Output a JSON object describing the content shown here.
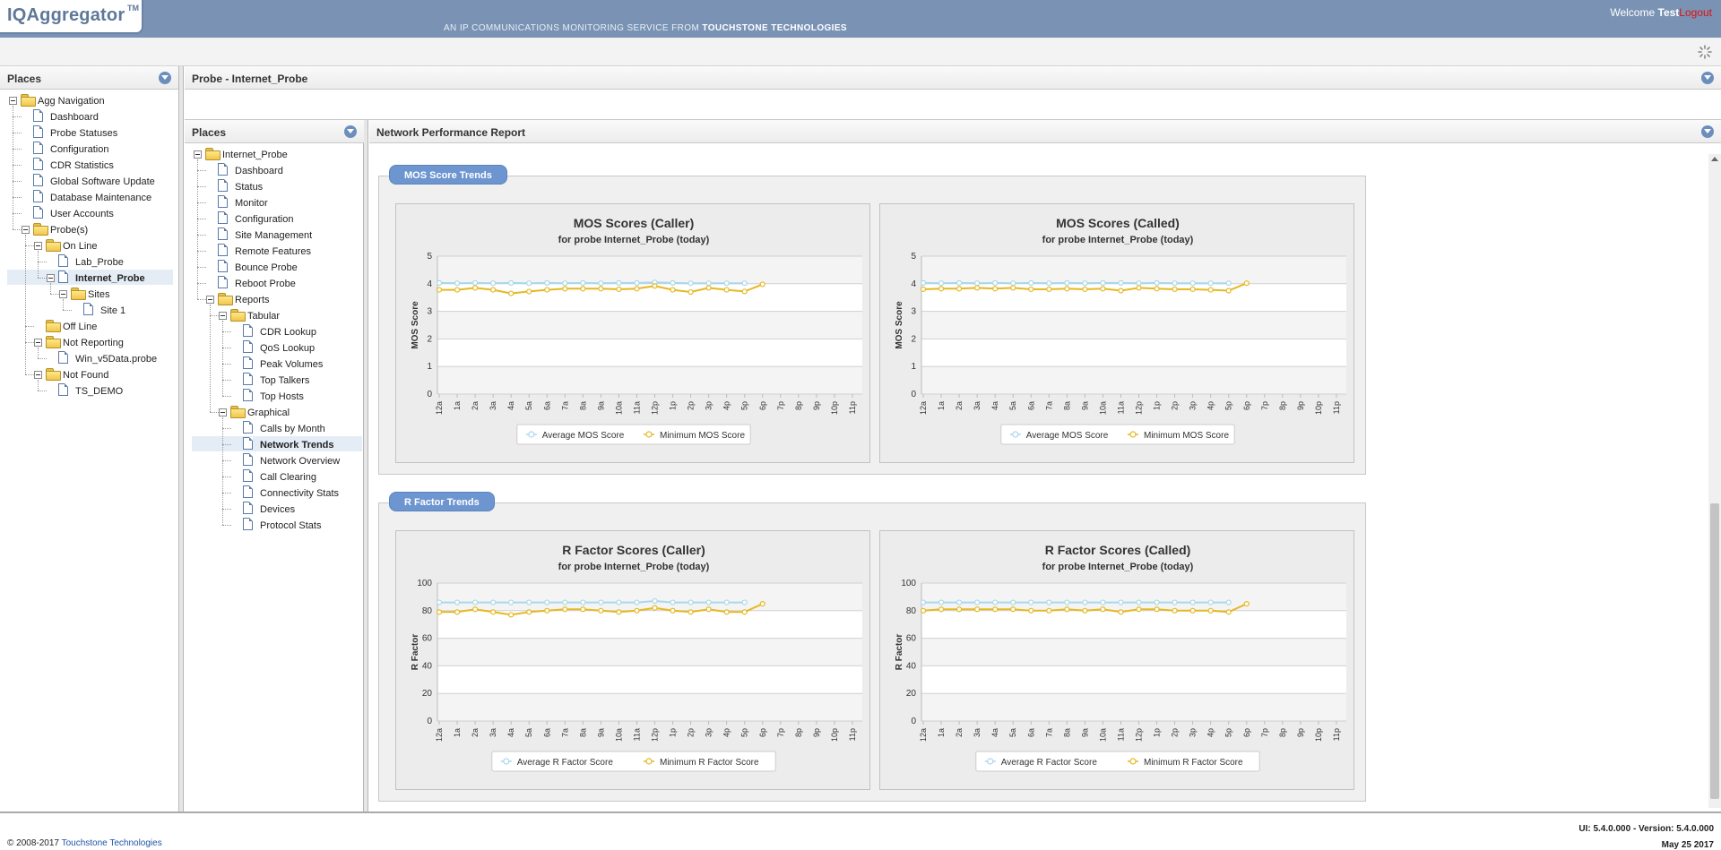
{
  "header": {
    "logo": "IQAggregator",
    "logo_tm": "TM",
    "tagline_part1": "AN IP COMMUNICATIONS MONITORING SERVICE FROM ",
    "tagline_part2": "TOUCHSTONE TECHNOLOGIES",
    "welcome": "Welcome ",
    "user": "Test",
    "logout": "Logout"
  },
  "left_panel": {
    "title": "Places",
    "tree": [
      {
        "label": "Agg Navigation",
        "icon": "folder",
        "depth": 0,
        "expander": true
      },
      {
        "label": "Dashboard",
        "icon": "page",
        "depth": 1
      },
      {
        "label": "Probe Statuses",
        "icon": "page",
        "depth": 1
      },
      {
        "label": "Configuration",
        "icon": "page",
        "depth": 1
      },
      {
        "label": "CDR Statistics",
        "icon": "page",
        "depth": 1
      },
      {
        "label": "Global Software Update",
        "icon": "page",
        "depth": 1
      },
      {
        "label": "Database Maintenance",
        "icon": "page",
        "depth": 1
      },
      {
        "label": "User Accounts",
        "icon": "page",
        "depth": 1
      },
      {
        "label": "Probe(s)",
        "icon": "folder",
        "depth": 1,
        "expander": true
      },
      {
        "label": "On Line",
        "icon": "folder",
        "depth": 2,
        "expander": true
      },
      {
        "label": "Lab_Probe",
        "icon": "page",
        "depth": 3
      },
      {
        "label": "Internet_Probe",
        "icon": "page",
        "depth": 3,
        "expander": true,
        "selected": true
      },
      {
        "label": "Sites",
        "icon": "folder",
        "depth": 4,
        "expander": true
      },
      {
        "label": "Site 1",
        "icon": "page",
        "depth": 5
      },
      {
        "label": "Off Line",
        "icon": "folder",
        "depth": 2
      },
      {
        "label": "Not Reporting",
        "icon": "folder",
        "depth": 2,
        "expander": true
      },
      {
        "label": "Win_v5Data.probe",
        "icon": "page",
        "depth": 3
      },
      {
        "label": "Not Found",
        "icon": "folder",
        "depth": 2,
        "expander": true
      },
      {
        "label": "TS_DEMO",
        "icon": "page",
        "depth": 3
      }
    ]
  },
  "probe_panel": {
    "title": "Probe - Internet_Probe"
  },
  "places2": {
    "title": "Places",
    "tree": [
      {
        "label": "Internet_Probe",
        "icon": "folder",
        "depth": 0,
        "expander": true
      },
      {
        "label": "Dashboard",
        "icon": "page",
        "depth": 1
      },
      {
        "label": "Status",
        "icon": "page",
        "depth": 1
      },
      {
        "label": "Monitor",
        "icon": "page",
        "depth": 1
      },
      {
        "label": "Configuration",
        "icon": "page",
        "depth": 1
      },
      {
        "label": "Site Management",
        "icon": "page",
        "depth": 1
      },
      {
        "label": "Remote Features",
        "icon": "page",
        "depth": 1
      },
      {
        "label": "Bounce Probe",
        "icon": "page",
        "depth": 1
      },
      {
        "label": "Reboot Probe",
        "icon": "page",
        "depth": 1
      },
      {
        "label": "Reports",
        "icon": "folder",
        "depth": 1,
        "expander": true
      },
      {
        "label": "Tabular",
        "icon": "folder",
        "depth": 2,
        "expander": true
      },
      {
        "label": "CDR Lookup",
        "icon": "page",
        "depth": 3
      },
      {
        "label": "QoS Lookup",
        "icon": "page",
        "depth": 3
      },
      {
        "label": "Peak Volumes",
        "icon": "page",
        "depth": 3
      },
      {
        "label": "Top Talkers",
        "icon": "page",
        "depth": 3
      },
      {
        "label": "Top Hosts",
        "icon": "page",
        "depth": 3
      },
      {
        "label": "Graphical",
        "icon": "folder",
        "depth": 2,
        "expander": true
      },
      {
        "label": "Calls by Month",
        "icon": "page",
        "depth": 3
      },
      {
        "label": "Network Trends",
        "icon": "page",
        "depth": 3,
        "selected": true
      },
      {
        "label": "Network Overview",
        "icon": "page",
        "depth": 3
      },
      {
        "label": "Call Clearing",
        "icon": "page",
        "depth": 3
      },
      {
        "label": "Connectivity Stats",
        "icon": "page",
        "depth": 3
      },
      {
        "label": "Devices",
        "icon": "page",
        "depth": 3
      },
      {
        "label": "Protocol Stats",
        "icon": "page",
        "depth": 3
      }
    ]
  },
  "report": {
    "title": "Network Performance Report",
    "sections": [
      {
        "label": "MOS Score Trends"
      },
      {
        "label": "R Factor Trends"
      }
    ]
  },
  "colors": {
    "header": "#7a93b5",
    "accent": "#6d95d0",
    "average_line": "#a8d8ec",
    "minimum_line": "#e6b822",
    "logout": "#e01010"
  },
  "chart_data": [
    {
      "type": "line",
      "title": "MOS Scores (Caller)",
      "subtitle": "for probe Internet_Probe (today)",
      "ylabel": "MOS Score",
      "xlabel": "",
      "ylim": [
        0,
        5
      ],
      "yticks": [
        0,
        1,
        2,
        3,
        4,
        5
      ],
      "categories": [
        "12a",
        "1a",
        "2a",
        "3a",
        "4a",
        "5a",
        "6a",
        "7a",
        "8a",
        "9a",
        "10a",
        "11a",
        "12p",
        "1p",
        "2p",
        "3p",
        "4p",
        "5p",
        "6p",
        "7p",
        "8p",
        "9p",
        "10p",
        "11p"
      ],
      "series": [
        {
          "name": "Average MOS Score",
          "values": [
            4.03,
            4.02,
            4.03,
            4.02,
            4.03,
            4.02,
            4.03,
            4.02,
            4.03,
            4.02,
            4.03,
            4.03,
            4.05,
            4.03,
            4.02,
            4.02,
            4.02,
            4.02,
            null,
            null,
            null,
            null,
            null,
            null
          ]
        },
        {
          "name": "Minimum MOS Score",
          "values": [
            3.78,
            3.78,
            3.85,
            3.78,
            3.65,
            3.72,
            3.78,
            3.82,
            3.82,
            3.82,
            3.8,
            3.82,
            3.92,
            3.78,
            3.7,
            3.85,
            3.78,
            3.72,
            3.98,
            null,
            null,
            null,
            null,
            null
          ]
        }
      ],
      "legend": "bottom"
    },
    {
      "type": "line",
      "title": "MOS Scores (Called)",
      "subtitle": "for probe Internet_Probe (today)",
      "ylabel": "MOS Score",
      "xlabel": "",
      "ylim": [
        0,
        5
      ],
      "yticks": [
        0,
        1,
        2,
        3,
        4,
        5
      ],
      "categories": [
        "12a",
        "1a",
        "2a",
        "3a",
        "4a",
        "5a",
        "6a",
        "7a",
        "8a",
        "9a",
        "10a",
        "11a",
        "12p",
        "1p",
        "2p",
        "3p",
        "4p",
        "5p",
        "6p",
        "7p",
        "8p",
        "9p",
        "10p",
        "11p"
      ],
      "series": [
        {
          "name": "Average MOS Score",
          "values": [
            4.03,
            4.02,
            4.03,
            4.02,
            4.03,
            4.02,
            4.03,
            4.02,
            4.03,
            4.02,
            4.03,
            4.03,
            4.02,
            4.03,
            4.02,
            4.02,
            4.02,
            4.02,
            null,
            null,
            null,
            null,
            null,
            null
          ]
        },
        {
          "name": "Minimum MOS Score",
          "values": [
            3.8,
            3.82,
            3.82,
            3.85,
            3.82,
            3.85,
            3.8,
            3.8,
            3.82,
            3.8,
            3.82,
            3.75,
            3.85,
            3.82,
            3.8,
            3.8,
            3.78,
            3.75,
            4.02,
            null,
            null,
            null,
            null,
            null
          ]
        }
      ],
      "legend": "bottom"
    },
    {
      "type": "line",
      "title": "R Factor Scores (Caller)",
      "subtitle": "for probe Internet_Probe (today)",
      "ylabel": "R Factor",
      "xlabel": "",
      "ylim": [
        0,
        100
      ],
      "yticks": [
        0,
        20,
        40,
        60,
        80,
        100
      ],
      "categories": [
        "12a",
        "1a",
        "2a",
        "3a",
        "4a",
        "5a",
        "6a",
        "7a",
        "8a",
        "9a",
        "10a",
        "11a",
        "12p",
        "1p",
        "2p",
        "3p",
        "4p",
        "5p",
        "6p",
        "7p",
        "8p",
        "9p",
        "10p",
        "11p"
      ],
      "series": [
        {
          "name": "Average R Factor Score",
          "values": [
            86,
            86,
            86,
            86,
            86,
            86,
            86,
            86,
            86,
            86,
            86,
            86,
            87,
            86,
            86,
            86,
            86,
            86,
            null,
            null,
            null,
            null,
            null,
            null
          ]
        },
        {
          "name": "Minimum R Factor Score",
          "values": [
            79,
            79,
            81,
            79,
            77,
            79,
            80,
            81,
            81,
            80,
            79,
            80,
            82,
            80,
            79,
            81,
            79,
            79,
            85,
            null,
            null,
            null,
            null,
            null
          ]
        }
      ],
      "legend": "bottom"
    },
    {
      "type": "line",
      "title": "R Factor Scores (Called)",
      "subtitle": "for probe Internet_Probe (today)",
      "ylabel": "R Factor",
      "xlabel": "",
      "ylim": [
        0,
        100
      ],
      "yticks": [
        0,
        20,
        40,
        60,
        80,
        100
      ],
      "categories": [
        "12a",
        "1a",
        "2a",
        "3a",
        "4a",
        "5a",
        "6a",
        "7a",
        "8a",
        "9a",
        "10a",
        "11a",
        "12p",
        "1p",
        "2p",
        "3p",
        "4p",
        "5p",
        "6p",
        "7p",
        "8p",
        "9p",
        "10p",
        "11p"
      ],
      "series": [
        {
          "name": "Average R Factor Score",
          "values": [
            86,
            86,
            86,
            86,
            86,
            86,
            86,
            86,
            86,
            86,
            86,
            86,
            86,
            86,
            86,
            86,
            86,
            86,
            null,
            null,
            null,
            null,
            null,
            null
          ]
        },
        {
          "name": "Minimum R Factor Score",
          "values": [
            80,
            81,
            81,
            81,
            81,
            81,
            80,
            80,
            81,
            80,
            81,
            79,
            81,
            81,
            80,
            80,
            80,
            79,
            85,
            null,
            null,
            null,
            null,
            null
          ]
        }
      ],
      "legend": "bottom"
    }
  ],
  "footer": {
    "copyright": "© 2008-2017 ",
    "company": "Touchstone Technologies",
    "version": "UI: 5.4.0.000 - Version: 5.4.0.000",
    "date": "May 25 2017"
  }
}
